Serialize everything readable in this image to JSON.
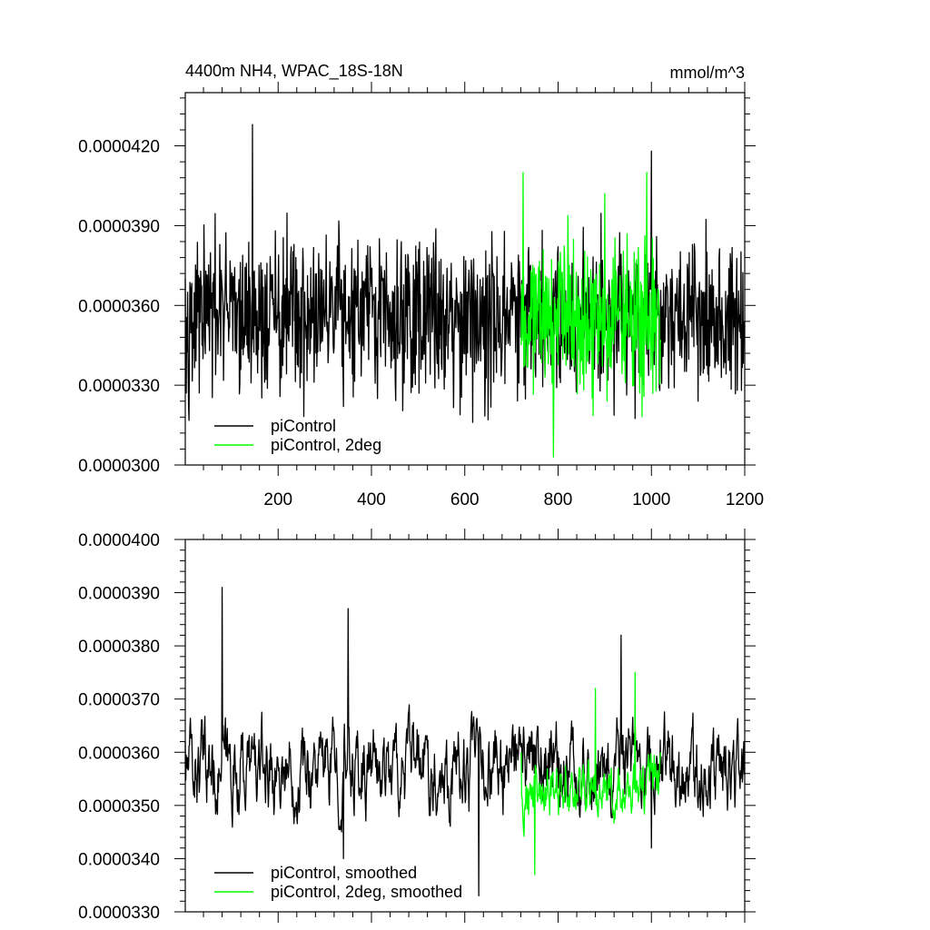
{
  "charts": [
    {
      "title_left": "4400m NH4, WPAC_18S-18N",
      "title_right": "mmol/m^3",
      "ylim": [
        3e-05,
        4.4e-05
      ],
      "xlim": [
        1,
        1200
      ],
      "ytick_labels": [
        "0.0000300",
        "0.0000330",
        "0.0000360",
        "0.0000390",
        "0.0000420"
      ],
      "ytick_values": [
        3e-05,
        3.3e-05,
        3.6e-05,
        3.9e-05,
        4.2e-05
      ],
      "xtick_labels": [
        "200",
        "400",
        "600",
        "800",
        "1000",
        "1200"
      ],
      "xtick_values": [
        200,
        400,
        600,
        800,
        1000,
        1200
      ],
      "legend": [
        "piControl",
        "piControl, 2deg"
      ],
      "colors": [
        "#000000",
        "#00ff00"
      ]
    },
    {
      "title_left": "",
      "title_right": "",
      "ylim": [
        3.3e-05,
        4e-05
      ],
      "xlim": [
        1,
        1200
      ],
      "ytick_labels": [
        "0.0000330",
        "0.0000340",
        "0.0000350",
        "0.0000360",
        "0.0000370",
        "0.0000380",
        "0.0000390",
        "0.0000400"
      ],
      "ytick_values": [
        3.3e-05,
        3.4e-05,
        3.5e-05,
        3.6e-05,
        3.7e-05,
        3.8e-05,
        3.9e-05,
        4e-05
      ],
      "xtick_labels": [],
      "xtick_values": [
        200,
        400,
        600,
        800,
        1000,
        1200
      ],
      "legend": [
        "piControl, smoothed",
        "piControl, 2deg, smoothed"
      ],
      "colors": [
        "#000000",
        "#00ff00"
      ]
    }
  ],
  "chart_data": [
    {
      "type": "line",
      "title": "4400m NH4, WPAC_18S-18N",
      "ylabel": "mmol/m^3",
      "xlim": [
        1,
        1200
      ],
      "ylim": [
        3e-05,
        4.4e-05
      ],
      "grid": false,
      "legend_position": "bottom-left",
      "series": [
        {
          "name": "piControl",
          "x_range": [
            1,
            1200
          ],
          "mean": 3.56e-05,
          "min": 3.16e-05,
          "max": 4.28e-05,
          "keypoints": [
            [
              1,
              3.7e-05
            ],
            [
              145,
              4.28e-05
            ],
            [
              340,
              3.22e-05
            ],
            [
              540,
              3.42e-05
            ],
            [
              650,
              3.17e-05
            ],
            [
              740,
              3.48e-05
            ],
            [
              1000,
              4.18e-05
            ],
            [
              1100,
              3.24e-05
            ],
            [
              1200,
              3.52e-05
            ]
          ]
        },
        {
          "name": "piControl, 2deg",
          "x_range": [
            721,
            1020
          ],
          "mean": 3.52e-05,
          "min": 3.03e-05,
          "max": 4.1e-05,
          "keypoints": [
            [
              721,
              3.45e-05
            ],
            [
              725,
              4.1e-05
            ],
            [
              790,
              3.03e-05
            ],
            [
              900,
              4.02e-05
            ],
            [
              990,
              4.1e-05
            ],
            [
              1020,
              3.47e-05
            ]
          ]
        }
      ]
    },
    {
      "type": "line",
      "xlim": [
        1,
        1200
      ],
      "ylim": [
        3.3e-05,
        4e-05
      ],
      "grid": false,
      "legend_position": "bottom-left",
      "series": [
        {
          "name": "piControl, smoothed",
          "x_range": [
            1,
            1200
          ],
          "mean": 3.57e-05,
          "min": 3.33e-05,
          "max": 3.91e-05,
          "keypoints": [
            [
              1,
              3.62e-05
            ],
            [
              80,
              3.91e-05
            ],
            [
              350,
              3.87e-05
            ],
            [
              340,
              3.4e-05
            ],
            [
              630,
              3.33e-05
            ],
            [
              935,
              3.82e-05
            ],
            [
              1000,
              3.42e-05
            ],
            [
              1200,
              3.57e-05
            ]
          ]
        },
        {
          "name": "piControl, 2deg, smoothed",
          "x_range": [
            721,
            1020
          ],
          "mean": 3.53e-05,
          "min": 3.36e-05,
          "max": 3.75e-05,
          "keypoints": [
            [
              721,
              3.6e-05
            ],
            [
              750,
              3.37e-05
            ],
            [
              880,
              3.72e-05
            ],
            [
              965,
              3.75e-05
            ],
            [
              1020,
              3.6e-05
            ]
          ]
        }
      ]
    }
  ]
}
